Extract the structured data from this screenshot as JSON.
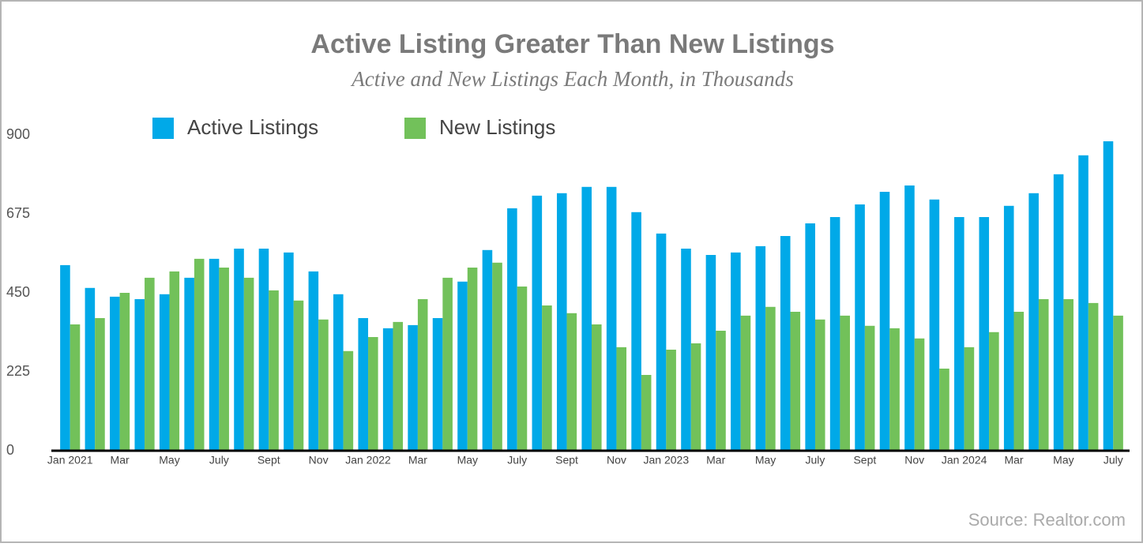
{
  "chart_data": {
    "type": "bar",
    "title": "Active Listing Greater Than New Listings",
    "subtitle": "Active and New Listings Each Month, in Thousands",
    "source": "Source: Realtor.com",
    "categories": [
      "Jan 2021",
      null,
      "Mar",
      null,
      "May",
      null,
      "July",
      null,
      "Sept",
      null,
      "Nov",
      null,
      "Jan 2022",
      null,
      "Mar",
      null,
      "May",
      null,
      "July",
      null,
      "Sept",
      null,
      "Nov",
      null,
      "Jan 2023",
      null,
      "Mar",
      null,
      "May",
      null,
      "July",
      null,
      "Sept",
      null,
      "Nov",
      null,
      "Jan 2024",
      null,
      "Mar",
      null,
      "May",
      null,
      "July"
    ],
    "series": [
      {
        "name": "Active Listings",
        "color": "#00a9e8",
        "values": [
          529,
          464,
          439,
          432,
          446,
          493,
          547,
          576,
          576,
          565,
          511,
          446,
          378,
          349,
          358,
          378,
          482,
          572,
          691,
          727,
          734,
          752,
          752,
          680,
          619,
          576,
          558,
          565,
          583,
          612,
          648,
          666,
          702,
          738,
          756,
          716,
          666,
          666,
          698,
          734,
          788,
          842,
          882
        ]
      },
      {
        "name": "New Listings",
        "color": "#72c15a",
        "values": [
          360,
          378,
          450,
          493,
          511,
          547,
          522,
          493,
          457,
          428,
          374,
          284,
          324,
          367,
          432,
          493,
          522,
          536,
          468,
          414,
          392,
          360,
          295,
          216,
          288,
          306,
          342,
          385,
          410,
          396,
          374,
          385,
          356,
          349,
          320,
          234,
          295,
          338,
          396,
          432,
          432,
          421,
          385
        ]
      }
    ],
    "ylim": [
      0,
      900
    ],
    "yticks": [
      0,
      225,
      450,
      675,
      900
    ],
    "grid": false,
    "legend": "top"
  }
}
